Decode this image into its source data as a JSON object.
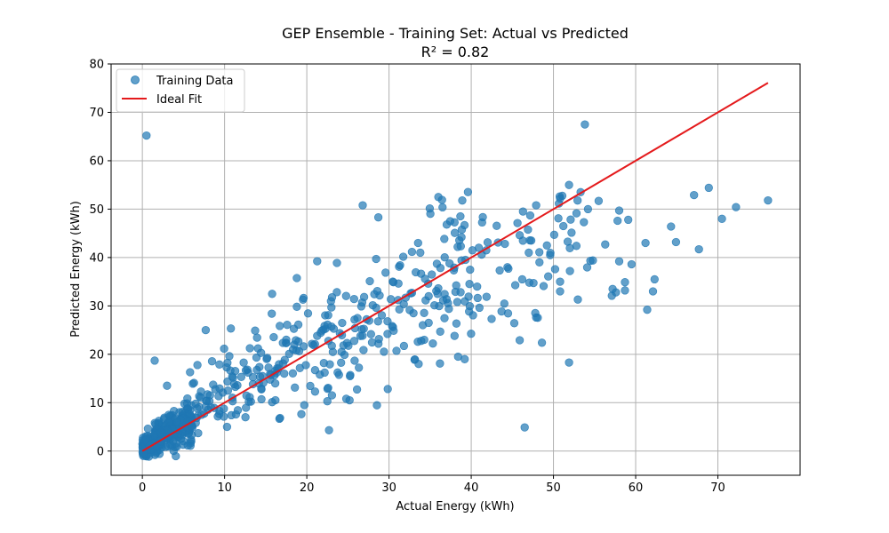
{
  "chart_data": {
    "type": "scatter",
    "title": "GEP Ensemble - Training Set: Actual vs Predicted",
    "subtitle": "R² = 0.82",
    "xlabel": "Actual Energy (kWh)",
    "ylabel": "Predicted Energy (kWh)",
    "xlim": [
      -3.8,
      80
    ],
    "ylim": [
      -5,
      80
    ],
    "xticks": [
      0,
      10,
      20,
      30,
      40,
      50,
      60,
      70
    ],
    "yticks": [
      0,
      10,
      20,
      30,
      40,
      50,
      60,
      70,
      80
    ],
    "grid": true,
    "legend_position": "top-left",
    "series": [
      {
        "name": "Training Data",
        "kind": "scatter",
        "color": "#1f77b4",
        "cluster_model": {
          "count": 620,
          "seed": 7,
          "segments": [
            {
              "x_range": [
                0,
                6
              ],
              "share": 0.42,
              "slope": 0.95,
              "intercept": 0.8,
              "spread": 2.0
            },
            {
              "x_range": [
                6,
                20
              ],
              "share": 0.22,
              "slope": 1.05,
              "intercept": 1.5,
              "spread": 4.0
            },
            {
              "x_range": [
                20,
                42
              ],
              "share": 0.3,
              "slope": 0.9,
              "intercept": 3.0,
              "spread": 5.5
            },
            {
              "x_range": [
                42,
                55
              ],
              "share": 0.06,
              "slope": 0.8,
              "intercept": 3.0,
              "spread": 7.0
            }
          ]
        },
        "points": [
          [
            0.5,
            65.2
          ],
          [
            0.1,
            -1.0
          ],
          [
            0.2,
            -0.6
          ],
          [
            1.5,
            18.7
          ],
          [
            7.7,
            25.0
          ],
          [
            3.0,
            13.5
          ],
          [
            22.7,
            4.3
          ],
          [
            21.0,
            12.3
          ],
          [
            19.7,
            9.5
          ],
          [
            22.5,
            10.3
          ],
          [
            24.8,
            10.8
          ],
          [
            25.2,
            10.5
          ],
          [
            26.8,
            50.8
          ],
          [
            28.7,
            48.3
          ],
          [
            36.0,
            52.5
          ],
          [
            46.5,
            4.9
          ],
          [
            51.9,
            18.3
          ],
          [
            48.6,
            22.4
          ],
          [
            47.9,
            27.6
          ],
          [
            45.9,
            22.9
          ],
          [
            33.6,
            18.0
          ],
          [
            36.2,
            18.1
          ],
          [
            38.4,
            19.5
          ],
          [
            39.2,
            19.0
          ],
          [
            51.9,
            55.0
          ],
          [
            53.3,
            53.5
          ],
          [
            50.8,
            52.2
          ],
          [
            46.3,
            49.5
          ],
          [
            47.9,
            50.8
          ],
          [
            55.5,
            51.7
          ],
          [
            54.2,
            50.0
          ],
          [
            56.3,
            42.7
          ],
          [
            58.0,
            49.7
          ],
          [
            57.8,
            47.6
          ],
          [
            59.1,
            47.8
          ],
          [
            59.5,
            38.6
          ],
          [
            58.0,
            39.2
          ],
          [
            57.2,
            33.5
          ],
          [
            57.6,
            32.8
          ],
          [
            57.1,
            32.1
          ],
          [
            58.7,
            34.9
          ],
          [
            58.7,
            33.2
          ],
          [
            61.2,
            43.0
          ],
          [
            62.3,
            35.5
          ],
          [
            62.1,
            33.0
          ],
          [
            61.4,
            29.2
          ],
          [
            64.3,
            46.4
          ],
          [
            64.9,
            43.2
          ],
          [
            67.1,
            52.9
          ],
          [
            68.9,
            54.4
          ],
          [
            67.7,
            41.7
          ],
          [
            70.5,
            48.0
          ],
          [
            72.2,
            50.4
          ],
          [
            76.1,
            51.8
          ],
          [
            50.6,
            48.1
          ],
          [
            51.2,
            46.5
          ],
          [
            50.8,
            35.0
          ],
          [
            52.0,
            37.2
          ],
          [
            50.2,
            37.6
          ],
          [
            54.8,
            39.4
          ],
          [
            49.6,
            40.5
          ],
          [
            52.8,
            42.4
          ],
          [
            53.7,
            47.3
          ],
          [
            48.8,
            34.1
          ],
          [
            50.8,
            33.0
          ],
          [
            47.3,
            43.5
          ],
          [
            48.3,
            39.0
          ],
          [
            49.2,
            42.5
          ],
          [
            45.9,
            44.6
          ],
          [
            47.0,
            41.0
          ],
          [
            44.4,
            38.0
          ],
          [
            46.2,
            35.5
          ]
        ]
      },
      {
        "name": "Ideal Fit",
        "kind": "line",
        "color": "#e41a1c",
        "x": [
          0,
          76.1
        ],
        "y": [
          0,
          76.1
        ]
      }
    ]
  }
}
